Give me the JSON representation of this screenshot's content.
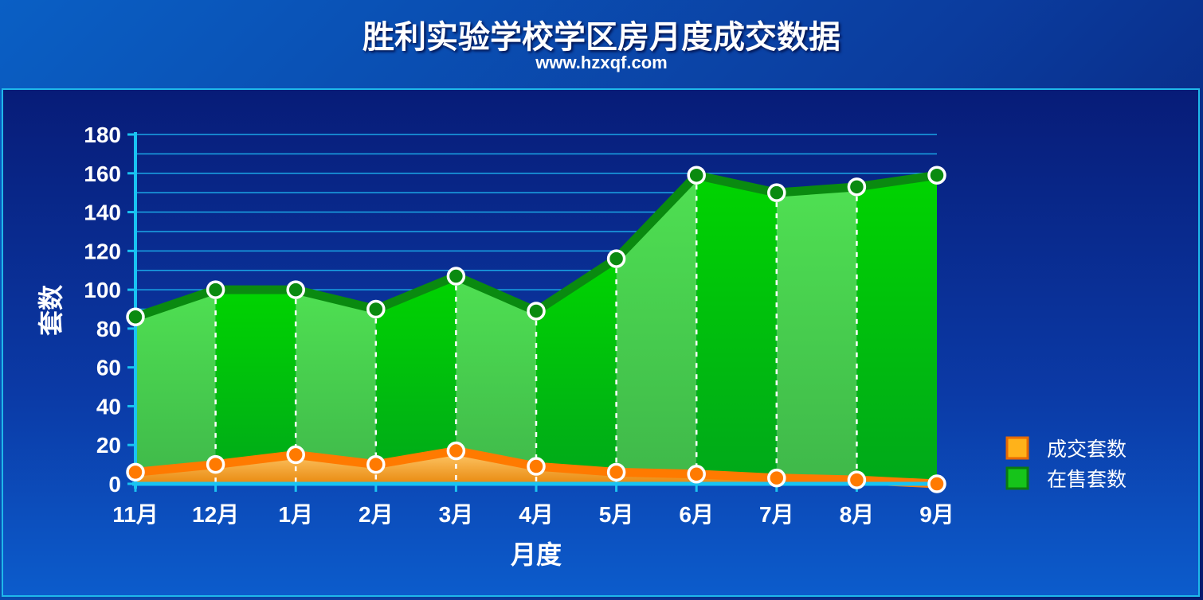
{
  "colors": {
    "onsale_line": "#0a8a10",
    "onsale_fill_light": "#46de4e",
    "onsale_fill_dark": "#00c800",
    "sold_line": "#ff7a00",
    "sold_fill": "#f5a623",
    "grid": "#1aa6e6",
    "axis": "#19c3f2"
  },
  "chart_data": {
    "type": "area",
    "title": "胜利实验学校学区房月度成交数据",
    "subtitle": "www.hzxqf.com",
    "xlabel": "月度",
    "ylabel": "套数",
    "ylim": [
      0,
      180
    ],
    "yticks": [
      "0",
      "20",
      "40",
      "60",
      "80",
      "100",
      "120",
      "140",
      "160",
      "180"
    ],
    "categories": [
      "11月",
      "12月",
      "1月",
      "2月",
      "3月",
      "4月",
      "5月",
      "6月",
      "7月",
      "8月",
      "9月"
    ],
    "legend_position": "right",
    "grid": true,
    "series": [
      {
        "name": "成交套数",
        "values": [
          6,
          10,
          15,
          10,
          17,
          9,
          6,
          5,
          3,
          2,
          0
        ]
      },
      {
        "name": "在售套数",
        "values": [
          86,
          100,
          100,
          90,
          107,
          89,
          116,
          159,
          150,
          153,
          159
        ]
      }
    ]
  }
}
